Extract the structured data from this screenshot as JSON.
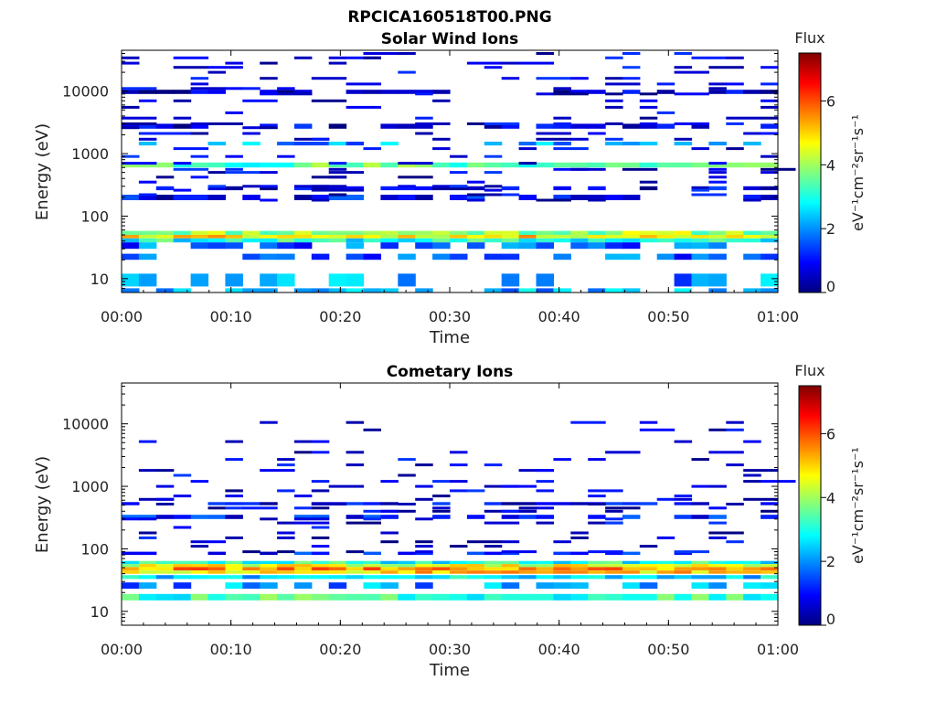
{
  "figure": {
    "title": "RPCICA160518T00.PNG",
    "colorscale": [
      "#00007f",
      "#0000ff",
      "#007fff",
      "#00ffff",
      "#7fff7f",
      "#ffff00",
      "#ff7f00",
      "#ff0000",
      "#7f0000"
    ]
  },
  "chart_data": [
    {
      "type": "heatmap",
      "title": "Solar Wind Ions",
      "xlabel": "Time",
      "ylabel": "Energy (eV)",
      "x_ticks": [
        "00:00",
        "00:10",
        "00:20",
        "00:30",
        "00:40",
        "00:50",
        "01:00"
      ],
      "x_range_minutes": [
        0,
        60
      ],
      "y_scale": "log",
      "y_ticks": [
        10,
        100,
        1000,
        10000
      ],
      "y_range": [
        6,
        45000
      ],
      "colorbar": {
        "label": "Flux",
        "units": "eV⁻¹cm⁻²sr⁻¹s⁻¹",
        "ticks": [
          0,
          2,
          4,
          6
        ],
        "range": [
          0,
          7.5
        ]
      },
      "bands": [
        {
          "e_low": 50,
          "e_high": 58,
          "flux": 4.0
        },
        {
          "e_low": 44,
          "e_high": 50,
          "flux": 4.8
        },
        {
          "e_low": 38,
          "e_high": 44,
          "flux": 3.0
        },
        {
          "e_low": 600,
          "e_high": 720,
          "flux": 3.5
        },
        {
          "e_low": 1350,
          "e_high": 1550,
          "flux": 2.0
        },
        {
          "e_low": 30,
          "e_high": 38,
          "flux": 1.6
        },
        {
          "e_low": 20,
          "e_high": 25,
          "flux": 1.6
        },
        {
          "e_low": 7.5,
          "e_high": 12,
          "flux": 2.0
        },
        {
          "e_low": 6,
          "e_high": 7,
          "flux": 2.2
        },
        {
          "e_low": 180,
          "e_high": 220,
          "flux": 0.9
        },
        {
          "e_low": 260,
          "e_high": 300,
          "flux": 0.7
        },
        {
          "e_low": 2500,
          "e_high": 3000,
          "flux": 0.6
        },
        {
          "e_low": 9000,
          "e_high": 10500,
          "flux": 0.5
        }
      ],
      "sparse_energies": [
        180,
        220,
        260,
        300,
        350,
        420,
        500,
        560,
        700,
        900,
        1200,
        1700,
        2100,
        2600,
        3000,
        3700,
        4500,
        5500,
        7000,
        9000,
        11000,
        13000,
        16000,
        20000,
        24000,
        28000,
        34000,
        40000
      ],
      "sparse_density": 0.18,
      "seed": 11
    },
    {
      "type": "heatmap",
      "title": "Cometary Ions",
      "xlabel": "Time",
      "ylabel": "Energy (eV)",
      "x_ticks": [
        "00:00",
        "00:10",
        "00:20",
        "00:30",
        "00:40",
        "00:50",
        "01:00"
      ],
      "x_range_minutes": [
        0,
        60
      ],
      "y_scale": "log",
      "y_ticks": [
        10,
        100,
        1000,
        10000
      ],
      "y_range": [
        6,
        45000
      ],
      "colorbar": {
        "label": "Flux",
        "units": "eV⁻¹cm⁻²sr⁻¹s⁻¹",
        "ticks": [
          0,
          2,
          4,
          6
        ],
        "range": [
          0,
          7.5
        ]
      },
      "bands": [
        {
          "e_low": 57,
          "e_high": 64,
          "flux": 3.0
        },
        {
          "e_low": 51,
          "e_high": 57,
          "flux": 4.5
        },
        {
          "e_low": 45,
          "e_high": 51,
          "flux": 5.4
        },
        {
          "e_low": 40,
          "e_high": 45,
          "flux": 5.0
        },
        {
          "e_low": 33,
          "e_high": 38,
          "flux": 2.6
        },
        {
          "e_low": 23,
          "e_high": 29,
          "flux": 2.0
        },
        {
          "e_low": 15,
          "e_high": 19,
          "flux": 3.3
        },
        {
          "e_low": 80,
          "e_high": 90,
          "flux": 1.2
        },
        {
          "e_low": 300,
          "e_high": 350,
          "flux": 1.0
        },
        {
          "e_low": 500,
          "e_high": 560,
          "flux": 0.8
        }
      ],
      "sparse_energies": [
        90,
        110,
        130,
        150,
        180,
        220,
        260,
        300,
        400,
        450,
        520,
        620,
        700,
        850,
        1000,
        1200,
        1500,
        1800,
        2200,
        2700,
        3500,
        5200,
        8000,
        10500
      ],
      "sparse_density": 0.17,
      "seed": 29
    }
  ]
}
